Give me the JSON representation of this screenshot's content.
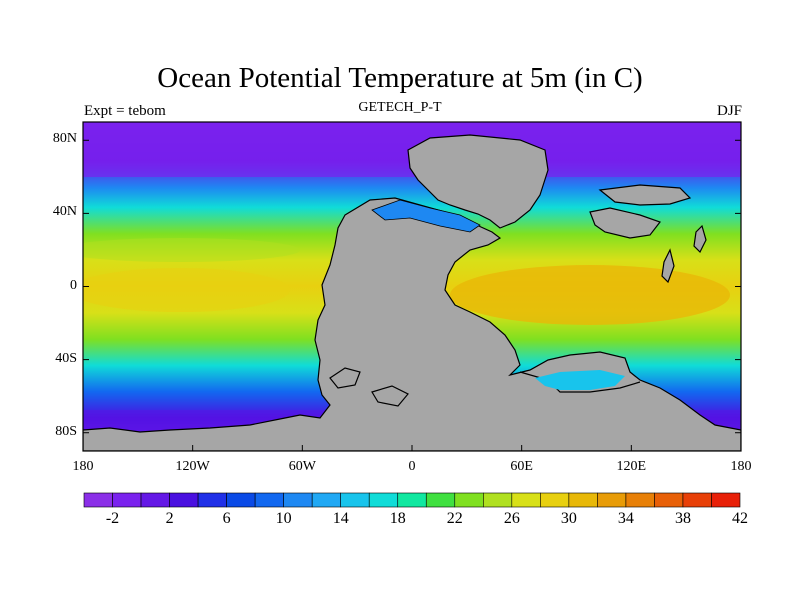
{
  "title": "Ocean Potential Temperature at 5m (in C)",
  "subtitle_left": "Expt = tebom",
  "subtitle_center": "GETECH_P-T",
  "subtitle_right": "DJF",
  "lat_labels": [
    "80N",
    "40N",
    "0",
    "40S",
    "80S"
  ],
  "lon_labels": [
    "180",
    "120W",
    "60W",
    "0",
    "60E",
    "120E",
    "180"
  ],
  "colorbar": {
    "labels": [
      "-2",
      "2",
      "6",
      "10",
      "14",
      "18",
      "22",
      "26",
      "30",
      "34",
      "38",
      "42"
    ],
    "colors": [
      "#8b2fe8",
      "#7a22ee",
      "#6418e6",
      "#4a10e0",
      "#2030e8",
      "#0a4ae6",
      "#1268f0",
      "#1e88f2",
      "#20a8f4",
      "#18c4ec",
      "#10dcd8",
      "#10e8a0",
      "#40e040",
      "#80e020",
      "#b0e020",
      "#d8e018",
      "#e8d010",
      "#e8b808",
      "#e89c08",
      "#e88008",
      "#e86008",
      "#e84008",
      "#e82008"
    ]
  },
  "colors": {
    "land": "#a6a6a6",
    "frame": "#000000"
  }
}
